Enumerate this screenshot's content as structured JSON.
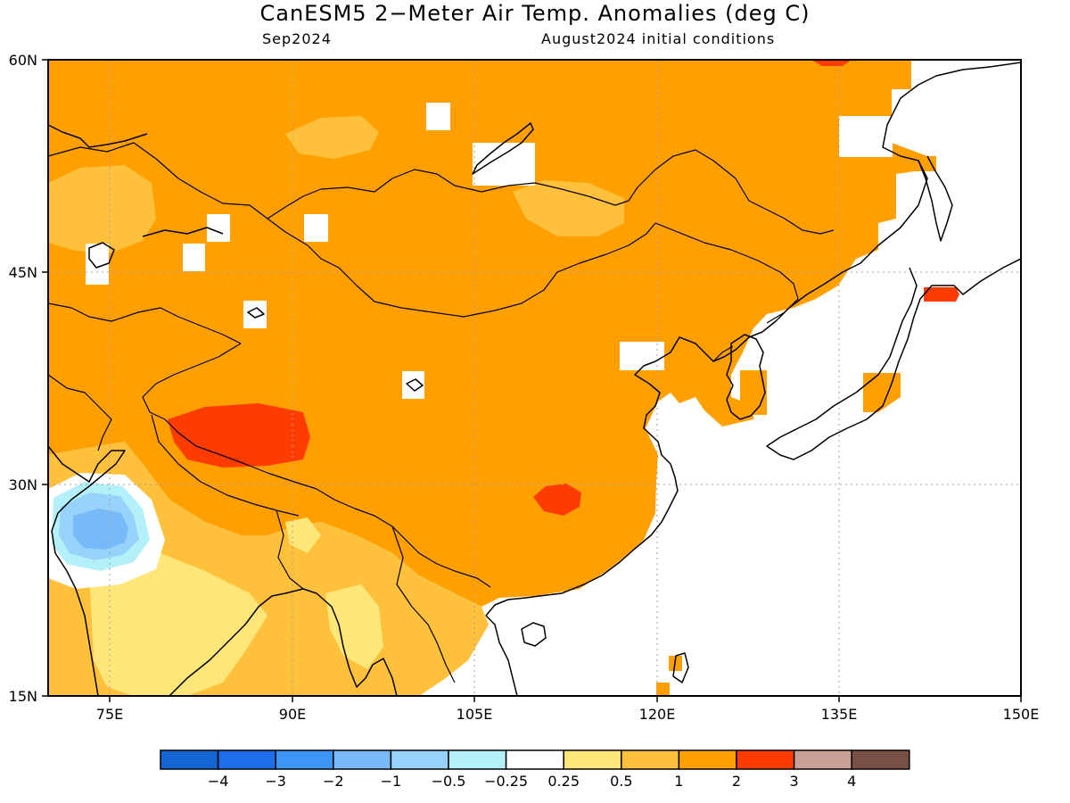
{
  "map": {
    "title": "CanESM5 2−Meter Air Temp. Anomalies (deg C)",
    "subtitle_left": "Sep2024",
    "subtitle_right": "August2024 initial conditions",
    "lon_ticks": [
      "75E",
      "90E",
      "105E",
      "120E",
      "135E",
      "150E"
    ],
    "lat_ticks": [
      "60N",
      "45N",
      "30N",
      "15N"
    ],
    "extent": {
      "lon": [
        70,
        150
      ],
      "lat": [
        15,
        60
      ]
    }
  },
  "legend": {
    "labels": [
      "−4",
      "−3",
      "−2",
      "−1",
      "−0.5",
      "−0.25",
      "0.25",
      "0.5",
      "1",
      "2",
      "3",
      "4"
    ],
    "colors": [
      "#1464d2",
      "#1e6eeb",
      "#3c96f5",
      "#78b9fa",
      "#96d2fa",
      "#b4f0fa",
      "#ffffff",
      "#ffe678",
      "#ffc03c",
      "#ffa000",
      "#ff3c00",
      "#c8a096",
      "#785046"
    ]
  },
  "palette": {
    "strong_warm": "#ffa000",
    "moderate_warm": "#ffc03c",
    "weak_warm": "#ffe678",
    "hot": "#ff3c00",
    "cool_1": "#b4f0fa",
    "cool_2": "#96d2fa",
    "cool_3": "#78b9fa",
    "neutral": "#ffffff"
  }
}
